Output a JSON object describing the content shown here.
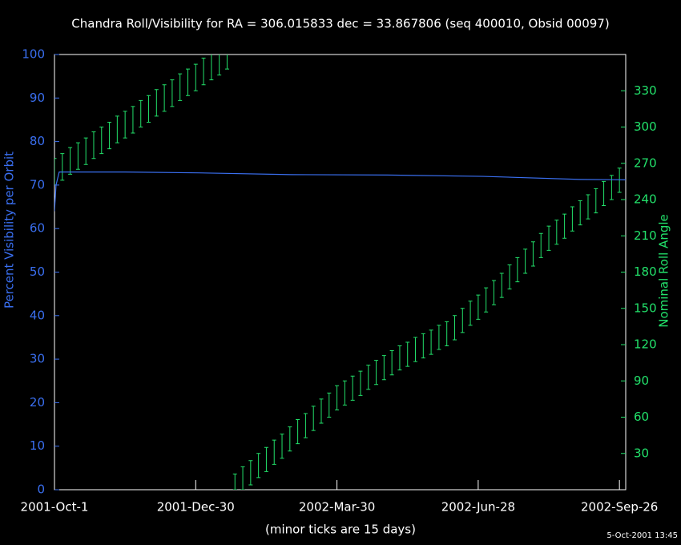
{
  "chart_data": {
    "type": "roll-visibility",
    "title": "Chandra Roll/Visibility for RA = 306.015833 dec = 33.867806 (seq 400010, Obsid 00097)",
    "y_label": "Percent Visibility per Orbit",
    "y2_label": "Nominal Roll Angle",
    "x_label": "(minor ticks are 15 days)",
    "footer": "5-Oct-2001 13:45",
    "xlim": [
      "2001-10-01",
      "2002-09-30"
    ],
    "xticks": [
      {
        "value": "2001-10-01",
        "label": "2001-Oct-1"
      },
      {
        "value": "2001-12-30",
        "label": "2001-Dec-30"
      },
      {
        "value": "2002-03-30",
        "label": "2002-Mar-30"
      },
      {
        "value": "2002-06-28",
        "label": "2002-Jun-28"
      },
      {
        "value": "2002-09-26",
        "label": "2002-Sep-26"
      }
    ],
    "ylim": [
      0,
      100
    ],
    "yticks": [
      0,
      10,
      20,
      30,
      40,
      50,
      60,
      70,
      80,
      90,
      100
    ],
    "y2lim": [
      0,
      360
    ],
    "y2ticks": [
      30,
      60,
      90,
      120,
      150,
      180,
      210,
      240,
      270,
      300,
      330
    ],
    "series": [
      {
        "name": "Percent Visibility per Orbit",
        "color": "#3a6ff0",
        "x": [
          "2001-10-01",
          "2001-10-02",
          "2001-10-04",
          "2001-11-15",
          "2002-01-01",
          "2002-03-01",
          "2002-05-01",
          "2002-07-01",
          "2002-09-01",
          "2002-09-30"
        ],
        "values": [
          64,
          70,
          73,
          73,
          72.8,
          72.4,
          72.3,
          72,
          71.3,
          71.2
        ]
      },
      {
        "name": "Nominal Roll Angle",
        "color": "#22e06a",
        "axis": "y2",
        "x": [
          "2001-10-01",
          "2001-10-06",
          "2001-10-11",
          "2001-10-16",
          "2001-10-21",
          "2001-10-26",
          "2001-10-31",
          "2001-11-05",
          "2001-11-10",
          "2001-11-15",
          "2001-11-20",
          "2001-11-25",
          "2001-11-30",
          "2001-12-05",
          "2001-12-10",
          "2001-12-15",
          "2001-12-20",
          "2001-12-25",
          "2001-12-30",
          "2002-01-04",
          "2002-01-09",
          "2002-01-14",
          "2002-01-19",
          "2002-01-24",
          "2002-01-29",
          "2002-02-03",
          "2002-02-08",
          "2002-02-13",
          "2002-02-18",
          "2002-02-23",
          "2002-02-28",
          "2002-03-05",
          "2002-03-10",
          "2002-03-15",
          "2002-03-20",
          "2002-03-25",
          "2002-03-30",
          "2002-04-04",
          "2002-04-09",
          "2002-04-14",
          "2002-04-19",
          "2002-04-24",
          "2002-04-29",
          "2002-05-04",
          "2002-05-09",
          "2002-05-14",
          "2002-05-19",
          "2002-05-24",
          "2002-05-29",
          "2002-06-03",
          "2002-06-08",
          "2002-06-13",
          "2002-06-18",
          "2002-06-23",
          "2002-06-28",
          "2002-07-03",
          "2002-07-08",
          "2002-07-13",
          "2002-07-18",
          "2002-07-23",
          "2002-07-28",
          "2002-08-02",
          "2002-08-07",
          "2002-08-12",
          "2002-08-17",
          "2002-08-22",
          "2002-08-27",
          "2002-09-01",
          "2002-09-06",
          "2002-09-11",
          "2002-09-16",
          "2002-09-21",
          "2002-09-26"
        ],
        "low": [
          252,
          256,
          261,
          265,
          269,
          274,
          278,
          282,
          287,
          291,
          295,
          300,
          304,
          309,
          313,
          317,
          322,
          326,
          330,
          335,
          339,
          343,
          348,
          0,
          0,
          4,
          10,
          15,
          21,
          26,
          32,
          38,
          43,
          49,
          55,
          60,
          66,
          70,
          74,
          78,
          83,
          87,
          91,
          95,
          99,
          102,
          106,
          109,
          112,
          116,
          119,
          124,
          130,
          136,
          141,
          147,
          153,
          159,
          166,
          172,
          179,
          185,
          192,
          198,
          203,
          208,
          214,
          219,
          224,
          229,
          235,
          240,
          246
        ],
        "high": [
          274,
          278,
          283,
          287,
          291,
          296,
          300,
          304,
          309,
          313,
          317,
          322,
          326,
          331,
          335,
          339,
          344,
          348,
          352,
          357,
          361,
          365,
          370,
          13,
          19,
          24,
          30,
          35,
          41,
          46,
          52,
          58,
          63,
          69,
          75,
          80,
          86,
          90,
          94,
          98,
          103,
          107,
          111,
          115,
          119,
          122,
          126,
          129,
          132,
          136,
          139,
          144,
          150,
          156,
          161,
          167,
          173,
          179,
          186,
          192,
          199,
          205,
          212,
          218,
          223,
          228,
          234,
          239,
          244,
          249,
          255,
          260,
          266
        ]
      }
    ]
  }
}
